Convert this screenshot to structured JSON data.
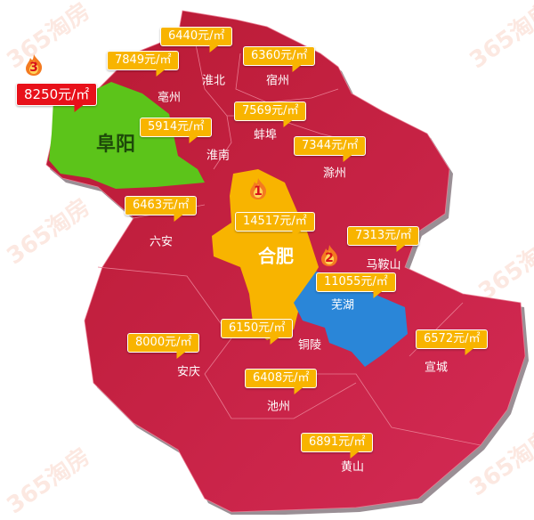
{
  "watermark": "365淘房",
  "unit": "元/㎡",
  "colors": {
    "default_region": "#c41f3e",
    "rank1": "#f8b400",
    "rank2": "#2a86d8",
    "rank3": "#5cc41a",
    "tag": "#f8b400",
    "tag_rank3": "#e8111a"
  },
  "cities": [
    {
      "name": "淮北",
      "price": "6440元/㎡"
    },
    {
      "name": "亳州",
      "price": "7849元/㎡"
    },
    {
      "name": "宿州",
      "price": "6360元/㎡"
    },
    {
      "name": "阜阳",
      "price": "8250元/㎡",
      "rank": "3"
    },
    {
      "name": "淮南",
      "price": "5914元/㎡"
    },
    {
      "name": "蚌埠",
      "price": "7569元/㎡"
    },
    {
      "name": "滁州",
      "price": "7344元/㎡"
    },
    {
      "name": "六安",
      "price": "6463元/㎡"
    },
    {
      "name": "合肥",
      "price": "14517元/㎡",
      "rank": "1"
    },
    {
      "name": "马鞍山",
      "price": "7313元/㎡"
    },
    {
      "name": "芜湖",
      "price": "11055元/㎡",
      "rank": "2"
    },
    {
      "name": "铜陵",
      "price": "6150元/㎡"
    },
    {
      "name": "安庆",
      "price": "8000元/㎡"
    },
    {
      "name": "宣城",
      "price": "6572元/㎡"
    },
    {
      "name": "池州",
      "price": "6408元/㎡"
    },
    {
      "name": "黄山",
      "price": "6891元/㎡"
    }
  ]
}
